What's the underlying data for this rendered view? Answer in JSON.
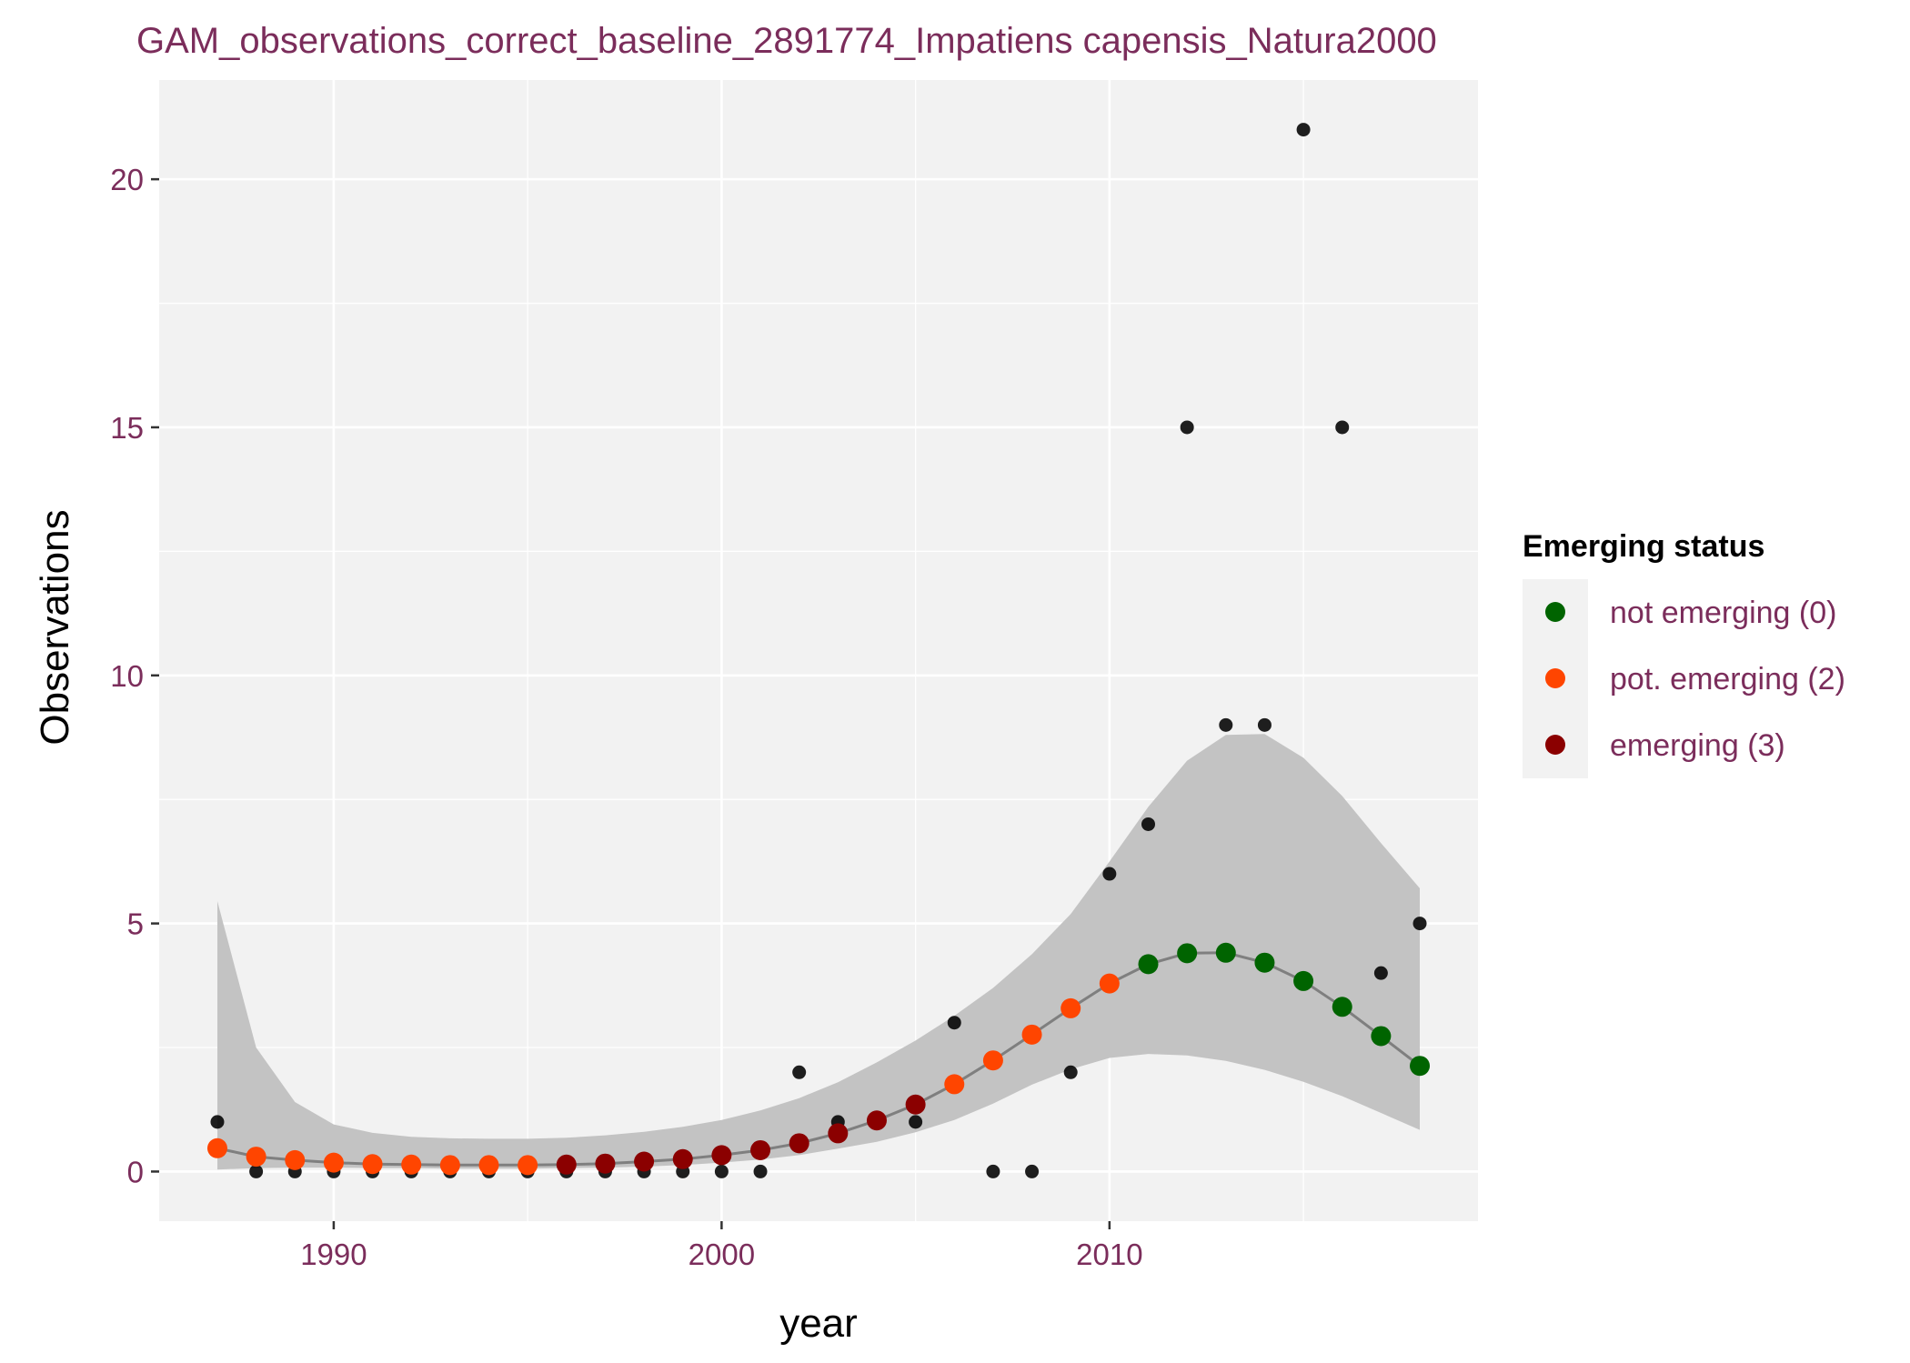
{
  "chart_data": {
    "type": "scatter",
    "title": "GAM_observations_correct_baseline_2891774_Impatiens capensis_Natura2000",
    "xlabel": "year",
    "ylabel": "Observations",
    "xlim": [
      1985.5,
      2019.5
    ],
    "ylim": [
      -1,
      22
    ],
    "x_ticks": [
      1990,
      2000,
      2010
    ],
    "x_minor_ticks": [
      1995,
      2005,
      2015
    ],
    "y_ticks": [
      0,
      5,
      10,
      15,
      20
    ],
    "y_minor_ticks": [
      2.5,
      7.5,
      12.5,
      17.5
    ],
    "x_tick_labels": [
      "1990",
      "2000",
      "2010"
    ],
    "y_tick_labels": [
      "0",
      "5",
      "10",
      "15",
      "20"
    ],
    "grid": true,
    "legend": {
      "title": "Emerging status",
      "position": "right",
      "entries": [
        {
          "label": "not emerging (0)",
          "color": "#006400"
        },
        {
          "label": "pot. emerging (2)",
          "color": "#ff4500"
        },
        {
          "label": "emerging (3)",
          "color": "#8b0000"
        }
      ]
    },
    "colors": {
      "panel": "#f2f2f2",
      "grid": "#ffffff",
      "ribbon": "#c3c3c3",
      "fit_line": "#7f7f7f",
      "observed": "#000000",
      "not_emerging": "#006400",
      "pot_emerging": "#ff4500",
      "emerging": "#8b0000"
    },
    "observed": {
      "x": [
        1987,
        1988,
        1989,
        1990,
        1991,
        1992,
        1993,
        1994,
        1995,
        1996,
        1997,
        1998,
        1999,
        2000,
        2001,
        2002,
        2003,
        2004,
        2005,
        2006,
        2007,
        2008,
        2009,
        2010,
        2011,
        2012,
        2013,
        2014,
        2015,
        2016,
        2017,
        2018
      ],
      "y": [
        1,
        0,
        0,
        0,
        0,
        0,
        0,
        0,
        0,
        0,
        0,
        0,
        0,
        0,
        0,
        2,
        1,
        1,
        1,
        3,
        0,
        0,
        2,
        6,
        7,
        15,
        9,
        9,
        21,
        15,
        4,
        5
      ]
    },
    "fit": {
      "x": [
        1987,
        1988,
        1989,
        1990,
        1991,
        1992,
        1993,
        1994,
        1995,
        1996,
        1997,
        1998,
        1999,
        2000,
        2001,
        2002,
        2003,
        2004,
        2005,
        2006,
        2007,
        2008,
        2009,
        2010,
        2011,
        2012,
        2013,
        2014,
        2015,
        2016,
        2017,
        2018
      ],
      "y": [
        0.47,
        0.3,
        0.23,
        0.18,
        0.15,
        0.14,
        0.13,
        0.13,
        0.13,
        0.14,
        0.16,
        0.2,
        0.25,
        0.33,
        0.43,
        0.57,
        0.77,
        1.03,
        1.35,
        1.76,
        2.24,
        2.76,
        3.29,
        3.79,
        4.18,
        4.4,
        4.41,
        4.21,
        3.84,
        3.32,
        2.73,
        2.13
      ],
      "lower": [
        0.04,
        0.07,
        0.08,
        0.08,
        0.07,
        0.07,
        0.06,
        0.06,
        0.06,
        0.07,
        0.08,
        0.1,
        0.13,
        0.18,
        0.24,
        0.33,
        0.46,
        0.6,
        0.79,
        1.04,
        1.37,
        1.75,
        2.06,
        2.29,
        2.37,
        2.34,
        2.23,
        2.05,
        1.81,
        1.52,
        1.18,
        0.84
      ],
      "upper": [
        5.45,
        2.5,
        1.4,
        0.95,
        0.78,
        0.7,
        0.67,
        0.66,
        0.66,
        0.68,
        0.73,
        0.8,
        0.9,
        1.04,
        1.23,
        1.48,
        1.8,
        2.2,
        2.64,
        3.14,
        3.7,
        4.38,
        5.19,
        6.25,
        7.35,
        8.28,
        8.8,
        8.82,
        8.34,
        7.57,
        6.62,
        5.71
      ],
      "status": [
        2,
        2,
        2,
        2,
        2,
        2,
        2,
        2,
        2,
        3,
        3,
        3,
        3,
        3,
        3,
        3,
        3,
        3,
        3,
        2,
        2,
        2,
        2,
        2,
        0,
        0,
        0,
        0,
        0,
        0,
        0,
        0
      ]
    }
  }
}
